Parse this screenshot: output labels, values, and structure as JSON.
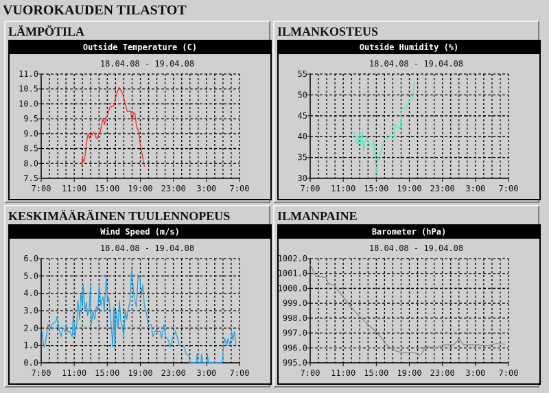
{
  "page_title": "VUOROKAUDEN TILASTOT",
  "chart_data": [
    {
      "panel_title": "LÄMPÖTILA",
      "type": "line",
      "title": "Outside Temperature (C)",
      "subtitle": "18.04.08 - 19.04.08",
      "color": "#ff2020",
      "ylim": [
        7.5,
        11.0
      ],
      "yticks": [
        "7.5",
        "8.0",
        "8.5",
        "9.0",
        "9.5",
        "10.0",
        "10.5",
        "11.0"
      ],
      "xrange": [
        "7:00",
        "7:00"
      ],
      "xticks": [
        "7:00",
        "11:00",
        "15:00",
        "19:00",
        "23:00",
        "3:00",
        "7:00"
      ],
      "grid": true,
      "x": [
        "11:55",
        "12:00",
        "12:10",
        "12:20",
        "12:30",
        "12:40",
        "12:50",
        "13:00",
        "13:10",
        "13:20",
        "13:30",
        "13:40",
        "13:50",
        "14:00",
        "14:10",
        "14:20",
        "14:30",
        "14:40",
        "14:50",
        "15:00",
        "15:10",
        "15:20",
        "15:30",
        "15:50",
        "16:00",
        "16:10",
        "16:25",
        "16:40",
        "16:55",
        "17:10",
        "17:25",
        "17:40",
        "17:50",
        "18:00",
        "18:10",
        "18:20",
        "18:30",
        "18:40",
        "18:50",
        "19:00",
        "19:10",
        "19:20",
        "19:30"
      ],
      "values": [
        7.9,
        8.2,
        8.05,
        8.3,
        8.7,
        9.0,
        8.85,
        9.0,
        8.95,
        9.05,
        9.0,
        8.85,
        8.85,
        9.05,
        9.05,
        9.35,
        9.5,
        9.3,
        9.55,
        9.6,
        9.75,
        9.9,
        9.9,
        9.95,
        10.2,
        10.35,
        10.55,
        10.45,
        10.3,
        10.0,
        9.75,
        9.75,
        9.75,
        9.4,
        9.7,
        9.7,
        9.3,
        9.15,
        9.0,
        8.6,
        8.4,
        8.1,
        7.9
      ]
    },
    {
      "panel_title": "ILMANKOSTEUS",
      "type": "line",
      "title": "Outside Humidity (%)",
      "subtitle": "18.04.08 - 19.04.08",
      "color": "#40f0c0",
      "ylim": [
        30,
        55
      ],
      "yticks": [
        "30",
        "35",
        "40",
        "45",
        "50",
        "55"
      ],
      "xrange": [
        "7:00",
        "7:00"
      ],
      "xticks": [
        "7:00",
        "11:00",
        "15:00",
        "19:00",
        "23:00",
        "3:00",
        "7:00"
      ],
      "grid": true,
      "x": [
        "11:56",
        "12:21",
        "12:46",
        "12:59",
        "13:06",
        "13:19",
        "13:28",
        "13:39",
        "13:52",
        "14:09",
        "14:34",
        "14:42",
        "14:50",
        "15:04",
        "15:15",
        "15:36",
        "15:49",
        "16:02",
        "16:22",
        "16:35",
        "17:09",
        "17:15",
        "17:37",
        "17:54",
        "18:02",
        "18:15",
        "18:32",
        "18:48",
        "19:00",
        "19:25",
        "19:33"
      ],
      "values": [
        41.2,
        41,
        38,
        41,
        38,
        41,
        36.5,
        39,
        40,
        38,
        38,
        39,
        35,
        31,
        35,
        36.5,
        38.5,
        39.5,
        39.5,
        40,
        40,
        43,
        42,
        42,
        46,
        47,
        46.5,
        47.5,
        49,
        49,
        53
      ]
    },
    {
      "panel_title": "KESKIMÄÄRÄINEN TUULENNOPEUS",
      "type": "line",
      "title": "Wind Speed (m/s)",
      "subtitle": "18.04.08 - 19.04.08",
      "color": "#1aa0e0",
      "ylim": [
        0,
        6
      ],
      "yticks": [
        "0.0",
        "1.0",
        "2.0",
        "3.0",
        "4.0",
        "5.0",
        "6.0"
      ],
      "xrange": [
        "7:00",
        "7:00"
      ],
      "xticks": [
        "7:00",
        "11:00",
        "15:00",
        "19:00",
        "23:00",
        "3:00",
        "7:00"
      ],
      "grid": true,
      "x": [
        "7:00",
        "7:08",
        "7:17",
        "7:25",
        "7:37",
        "7:50",
        "8:07",
        "8:18",
        "8:48",
        "8:57",
        "9:08",
        "9:25",
        "9:38",
        "9:55",
        "10:03",
        "10:11",
        "10:28",
        "10:45",
        "10:53",
        "11:05",
        "11:18",
        "11:26",
        "11:40",
        "11:48",
        "12:00",
        "12:05",
        "12:18",
        "12:28",
        "12:38",
        "12:50",
        "12:58",
        "13:03",
        "13:15",
        "13:28",
        "13:40",
        "13:51",
        "14:01",
        "14:13",
        "14:29",
        "14:38",
        "14:46",
        "14:54",
        "15:03",
        "15:11",
        "15:24",
        "15:33",
        "15:39",
        "15:48",
        "15:56",
        "16:04",
        "16:18",
        "16:28",
        "16:38",
        "16:51",
        "16:59",
        "17:11",
        "17:21",
        "17:29",
        "17:44",
        "17:58",
        "18:11",
        "18:23",
        "18:31",
        "18:43",
        "18:56",
        "19:08",
        "19:18",
        "19:29",
        "19:46",
        "19:57",
        "20:19",
        "20:31",
        "20:44",
        "21:26",
        "21:34",
        "21:51",
        "22:04",
        "22:24",
        "22:37",
        "22:49",
        "23:14",
        "23:27",
        "23:44",
        "0:20",
        "0:34",
        "0:54",
        "0:59",
        "1:47",
        "1:52",
        "2:00",
        "2:20",
        "2:25",
        "2:34",
        "3:04",
        "3:07",
        "3:15",
        "4:55",
        "5:04",
        "5:12",
        "5:28",
        "5:37",
        "5:53",
        "6:02",
        "6:13",
        "6:23",
        "6:35"
      ],
      "values": [
        1.8,
        1.8,
        1.0,
        0.9,
        1.5,
        2.2,
        2.0,
        2.2,
        2.4,
        2.7,
        2.0,
        1.5,
        2.0,
        1.8,
        2.2,
        1.8,
        1.8,
        1.5,
        2.8,
        1.5,
        2.2,
        3.6,
        2.5,
        4.0,
        3.2,
        4.5,
        3.0,
        3.5,
        2.7,
        3.2,
        4.5,
        2.2,
        3.0,
        2.5,
        3.2,
        3.0,
        4.5,
        3.3,
        3.8,
        3.0,
        4.2,
        4.9,
        3.5,
        3.8,
        2.7,
        1.7,
        0.9,
        3.2,
        0.8,
        3.0,
        2.0,
        3.6,
        2.4,
        2.0,
        1.5,
        3.0,
        2.5,
        3.0,
        3.5,
        5.4,
        4.0,
        3.5,
        3.2,
        4.9,
        5.0,
        3.9,
        4.5,
        3.3,
        2.8,
        2.2,
        2.2,
        1.5,
        1.8,
        1.8,
        1.4,
        2.2,
        1.5,
        1.3,
        0.9,
        1.3,
        1.8,
        1.5,
        1.0,
        0.9,
        0.5,
        0.4,
        0,
        0,
        0.5,
        0,
        0,
        0.5,
        0,
        0,
        0.5,
        0,
        0,
        1.0,
        1.4,
        1.0,
        1.4,
        1.0,
        1.8,
        1.3,
        1.8,
        1.0
      ]
    },
    {
      "panel_title": "ILMANPAINE",
      "type": "line",
      "title": "Barometer (hPa)",
      "subtitle": "18.04.08 - 19.04.08",
      "color": "#808080",
      "ylim": [
        995,
        1002
      ],
      "yticks": [
        "995.0",
        "996.0",
        "997.0",
        "998.0",
        "999.0",
        "1000.0",
        "1001.0",
        "1002.0"
      ],
      "xrange": [
        "7:00",
        "7:00"
      ],
      "xticks": [
        "7:00",
        "11:00",
        "15:00",
        "19:00",
        "23:00",
        "3:00",
        "7:00"
      ],
      "grid": true,
      "x": [
        "7:00",
        "7:42",
        "8:15",
        "8:57",
        "9:13",
        "9:55",
        "10:20",
        "11:10",
        "12:00",
        "12:50",
        "13:56",
        "14:46",
        "15:36",
        "16:06",
        "16:43",
        "17:33",
        "18:23",
        "19:29",
        "19:59",
        "20:02",
        "20:27",
        "20:56",
        "22:16",
        "23:06",
        "0:21",
        "1:02",
        "1:35",
        "3:15",
        "4:39",
        "5:29",
        "6:35"
      ],
      "values": [
        1001.6,
        1000.8,
        1000.8,
        1000.7,
        1000.3,
        1000.2,
        999.9,
        999.3,
        998.7,
        998.2,
        997.6,
        997.2,
        996.7,
        996.3,
        996.0,
        995.75,
        995.7,
        995.7,
        995.6,
        995.5,
        995.6,
        996.1,
        996.0,
        996.2,
        996.2,
        996.6,
        996.2,
        996.2,
        996.15,
        996.3,
        996.25
      ]
    }
  ]
}
